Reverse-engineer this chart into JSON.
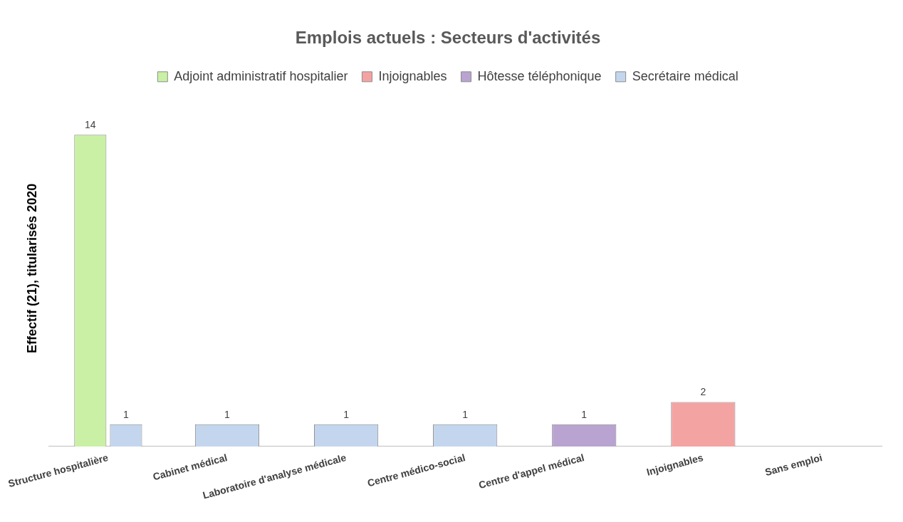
{
  "chart_data": {
    "type": "bar",
    "title": "Emplois actuels : Secteurs d'activités",
    "ylabel": "Effectif (21), titularisés 2020",
    "categories": [
      "Structure hospitalière",
      "Cabinet médical",
      "Laboratoire d'analyse médicale",
      "Centre médico-social",
      "Centre d'appel médical",
      "Injoignables",
      "Sans emploi"
    ],
    "series": [
      {
        "name": "Adjoint administratif hospitalier",
        "color": "#c9f0a4",
        "values": [
          14,
          null,
          null,
          null,
          null,
          null,
          null
        ]
      },
      {
        "name": "Injoignables",
        "color": "#f4a3a3",
        "values": [
          null,
          null,
          null,
          null,
          null,
          2,
          null
        ]
      },
      {
        "name": "Hôtesse téléphonique",
        "color": "#b9a3d0",
        "values": [
          null,
          null,
          null,
          null,
          1,
          null,
          null
        ]
      },
      {
        "name": "Secrétaire médical",
        "color": "#c3d6ee",
        "values": [
          1,
          1,
          1,
          1,
          null,
          null,
          null
        ]
      }
    ],
    "data_labels": true,
    "legend": "top",
    "grid": false
  }
}
